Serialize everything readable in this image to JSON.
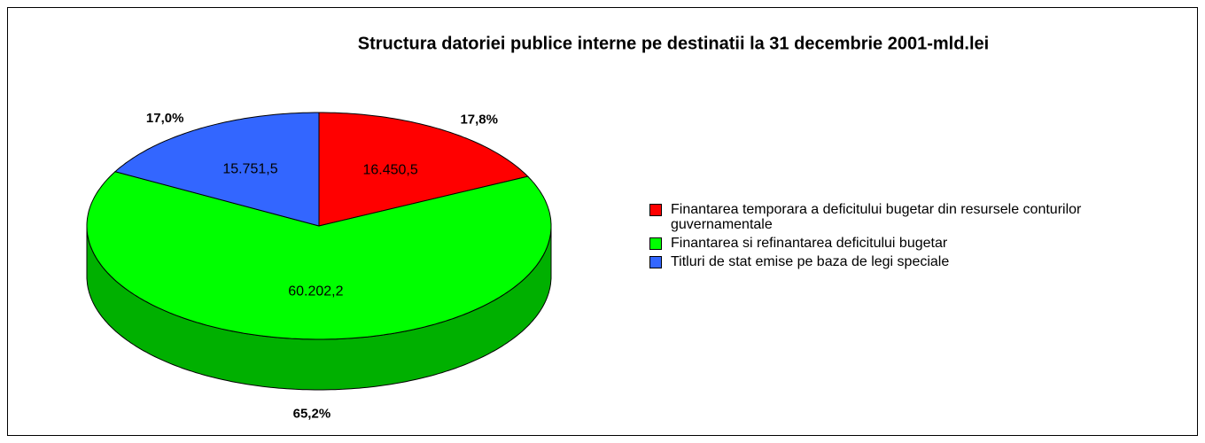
{
  "chart_data": {
    "type": "pie3d",
    "title": "Structura datoriei publice interne pe destinatii la 31 decembrie 2001-mld.lei",
    "categories": [
      "Finantarea temporara a deficitului bugetar din resursele conturilor guvernamentale",
      "Finantarea si refinantarea deficitului bugetar",
      "Titluri de stat emise pe baza de legi speciale"
    ],
    "values": [
      16450.5,
      60202.2,
      15751.5
    ],
    "value_labels": [
      "16.450,5",
      "60.202,2",
      "15.751,5"
    ],
    "percents": [
      17.8,
      65.2,
      17.0
    ],
    "percent_labels": [
      "17,8%",
      "65,2%",
      "17,0%"
    ],
    "colors": [
      "#ff0000",
      "#00ff00",
      "#3366ff"
    ],
    "side_colors": [
      "#cc0000",
      "#00b000",
      "#2244cc"
    ],
    "legend": "right"
  }
}
